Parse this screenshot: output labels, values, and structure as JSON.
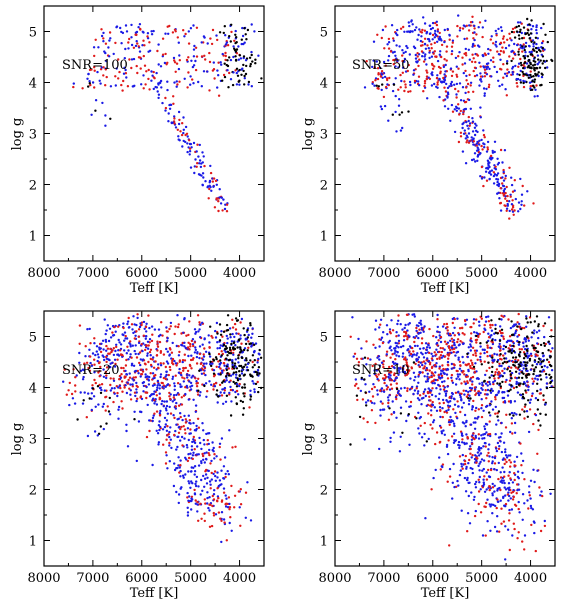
{
  "colors": {
    "black": "#000000",
    "blue": "#1a1ae6",
    "red": "#e01a1a"
  },
  "chart_data": [
    {
      "type": "scatter",
      "label": "SNR=100",
      "xlabel": "Teff [K]",
      "ylabel": "log g",
      "xlim": [
        8000,
        3500
      ],
      "ylim": [
        5.5,
        0.5
      ],
      "xticks": [
        "8000",
        "7000",
        "6000",
        "5000",
        "4000"
      ],
      "yticks": [
        "1",
        "2",
        "3",
        "4",
        "5"
      ],
      "spread": 1.0,
      "grid": false,
      "legend": "none",
      "series": [
        {
          "color": "black",
          "values": "stellar grid sample, low scatter"
        },
        {
          "color": "blue",
          "values": "stellar grid sample, low scatter"
        },
        {
          "color": "red",
          "values": "stellar grid sample, low scatter"
        }
      ]
    },
    {
      "type": "scatter",
      "label": "SNR=50",
      "xlabel": "Teff [K]",
      "ylabel": "log g",
      "xlim": [
        8000,
        3500
      ],
      "ylim": [
        5.5,
        0.5
      ],
      "xticks": [
        "8000",
        "7000",
        "6000",
        "5000",
        "4000"
      ],
      "yticks": [
        "1",
        "2",
        "3",
        "4",
        "5"
      ],
      "spread": 1.6,
      "grid": false,
      "legend": "none",
      "series": [
        {
          "color": "black"
        },
        {
          "color": "blue"
        },
        {
          "color": "red"
        }
      ]
    },
    {
      "type": "scatter",
      "label": "SNR=20",
      "xlabel": "Teff [K]",
      "ylabel": "log g",
      "xlim": [
        8000,
        3500
      ],
      "ylim": [
        5.5,
        0.5
      ],
      "xticks": [
        "8000",
        "7000",
        "6000",
        "5000",
        "4000"
      ],
      "yticks": [
        "1",
        "2",
        "3",
        "4",
        "5"
      ],
      "spread": 3.2,
      "grid": false,
      "legend": "none",
      "series": [
        {
          "color": "black"
        },
        {
          "color": "blue"
        },
        {
          "color": "red"
        }
      ]
    },
    {
      "type": "scatter",
      "label": "SNR=10",
      "xlabel": "Teff [K]",
      "ylabel": "log g",
      "xlim": [
        8000,
        3500
      ],
      "ylim": [
        5.5,
        0.5
      ],
      "xticks": [
        "8000",
        "7000",
        "6000",
        "5000",
        "4000"
      ],
      "yticks": [
        "1",
        "2",
        "3",
        "4",
        "5"
      ],
      "spread": 5.0,
      "grid": false,
      "legend": "none",
      "series": [
        {
          "color": "black"
        },
        {
          "color": "blue"
        },
        {
          "color": "red"
        }
      ]
    }
  ]
}
